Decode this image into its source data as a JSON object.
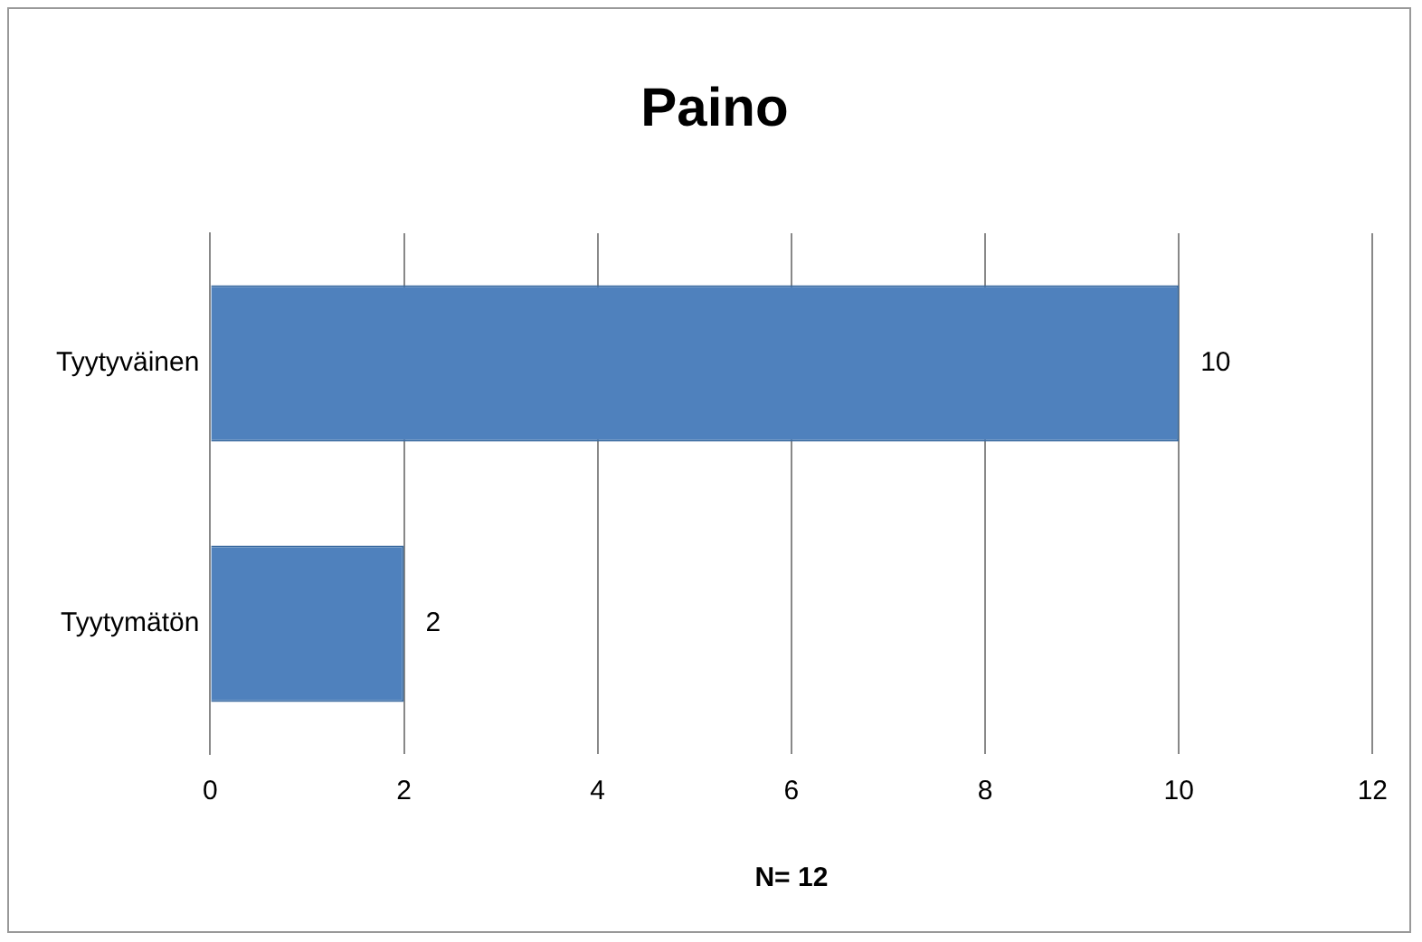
{
  "chart_data": {
    "type": "bar",
    "orientation": "horizontal",
    "title": "Paino",
    "xlabel": "N= 12",
    "categories": [
      "Tyytyväinen",
      "Tyytymätön"
    ],
    "values": [
      10,
      2
    ],
    "color": "#4f81bd",
    "xlim": [
      0,
      12
    ],
    "xticks": [
      0,
      2,
      4,
      6,
      8,
      10,
      12
    ],
    "grid": "x",
    "data_labels": true
  }
}
